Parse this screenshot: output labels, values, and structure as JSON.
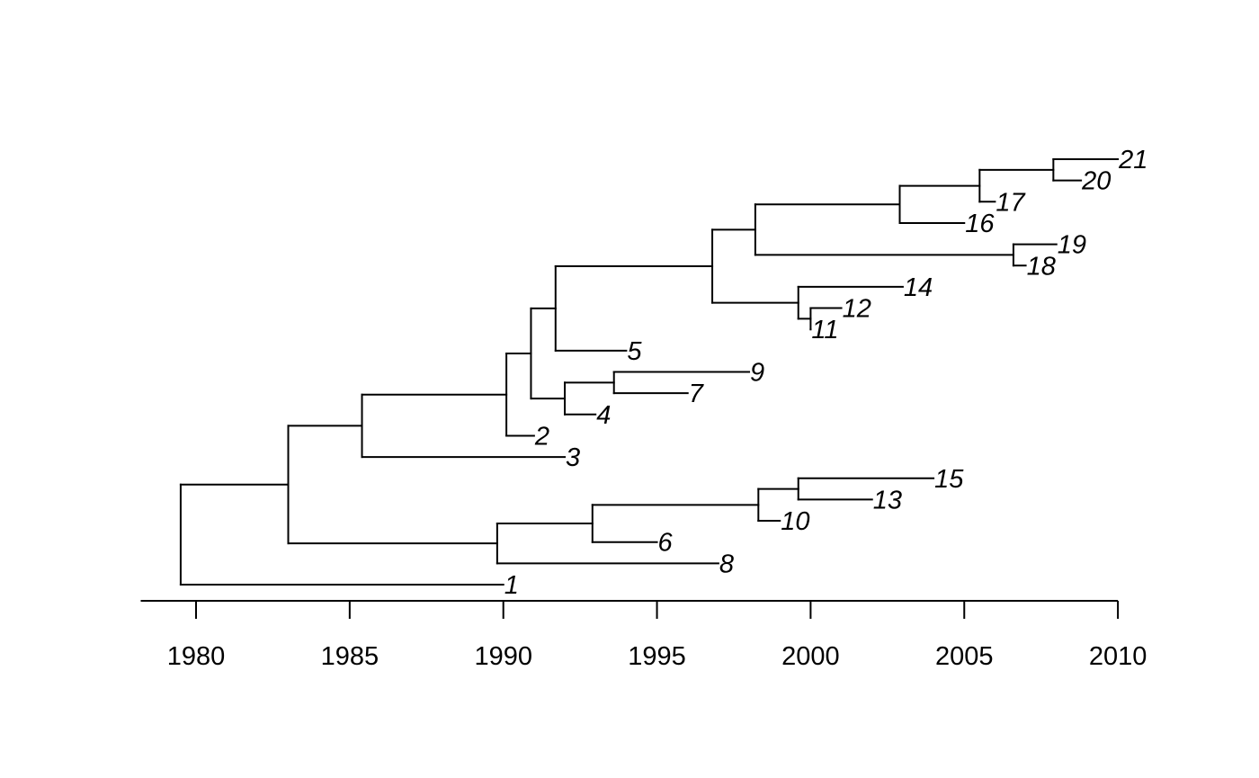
{
  "tree": {
    "nodes": [
      {
        "id": "root",
        "year": 1979.5,
        "parent": null
      },
      {
        "id": "n_a",
        "year": 1983.0,
        "parent": "root"
      },
      {
        "id": "n_b",
        "year": 1985.4,
        "parent": "n_a"
      },
      {
        "id": "n_c",
        "year": 1990.1,
        "parent": "n_b"
      },
      {
        "id": "n_d",
        "year": 1990.9,
        "parent": "n_c"
      },
      {
        "id": "n_e",
        "year": 1991.7,
        "parent": "n_d"
      },
      {
        "id": "n_f",
        "year": 1996.8,
        "parent": "n_e"
      },
      {
        "id": "n_g",
        "year": 1998.2,
        "parent": "n_f"
      },
      {
        "id": "n_h",
        "year": 2002.9,
        "parent": "n_g"
      },
      {
        "id": "n_i",
        "year": 2005.5,
        "parent": "n_h"
      },
      {
        "id": "n_j",
        "year": 2007.9,
        "parent": "n_i"
      },
      {
        "id": "n_k",
        "year": 2006.6,
        "parent": "n_g"
      },
      {
        "id": "n_l",
        "year": 1999.6,
        "parent": "n_f"
      },
      {
        "id": "n_m",
        "year": 2000.0,
        "parent": "n_l"
      },
      {
        "id": "n_n",
        "year": 1992.0,
        "parent": "n_d"
      },
      {
        "id": "n_o",
        "year": 1993.6,
        "parent": "n_n"
      },
      {
        "id": "n_p",
        "year": 1989.8,
        "parent": "n_a"
      },
      {
        "id": "n_q",
        "year": 1992.9,
        "parent": "n_p"
      },
      {
        "id": "n_r",
        "year": 1998.3,
        "parent": "n_q"
      },
      {
        "id": "n_s",
        "year": 1999.6,
        "parent": "n_r"
      }
    ],
    "tips": [
      {
        "label": "21",
        "year": 2010.0,
        "parent": "n_j"
      },
      {
        "label": "20",
        "year": 2008.8,
        "parent": "n_j"
      },
      {
        "label": "17",
        "year": 2006.0,
        "parent": "n_i"
      },
      {
        "label": "16",
        "year": 2005.0,
        "parent": "n_h"
      },
      {
        "label": "19",
        "year": 2008.0,
        "parent": "n_k"
      },
      {
        "label": "18",
        "year": 2007.0,
        "parent": "n_k"
      },
      {
        "label": "14",
        "year": 2003.0,
        "parent": "n_l"
      },
      {
        "label": "12",
        "year": 2001.0,
        "parent": "n_m"
      },
      {
        "label": "11",
        "year": 2000.0,
        "parent": "n_m"
      },
      {
        "label": "5",
        "year": 1994.0,
        "parent": "n_e"
      },
      {
        "label": "9",
        "year": 1998.0,
        "parent": "n_o"
      },
      {
        "label": "7",
        "year": 1996.0,
        "parent": "n_o"
      },
      {
        "label": "4",
        "year": 1993.0,
        "parent": "n_n"
      },
      {
        "label": "2",
        "year": 1991.0,
        "parent": "n_c"
      },
      {
        "label": "3",
        "year": 1992.0,
        "parent": "n_b"
      },
      {
        "label": "15",
        "year": 2004.0,
        "parent": "n_s"
      },
      {
        "label": "13",
        "year": 2002.0,
        "parent": "n_s"
      },
      {
        "label": "10",
        "year": 1999.0,
        "parent": "n_r"
      },
      {
        "label": "6",
        "year": 1995.0,
        "parent": "n_q"
      },
      {
        "label": "8",
        "year": 1997.0,
        "parent": "n_p"
      },
      {
        "label": "1",
        "year": 1990.0,
        "parent": "root"
      }
    ]
  },
  "axis": {
    "range": [
      1978.2,
      2010.0
    ],
    "ticks": [
      1980,
      1985,
      1990,
      1995,
      2000,
      2005,
      2010
    ],
    "tick_labels": [
      "1980",
      "1985",
      "1990",
      "1995",
      "2000",
      "2005",
      "2010"
    ]
  }
}
